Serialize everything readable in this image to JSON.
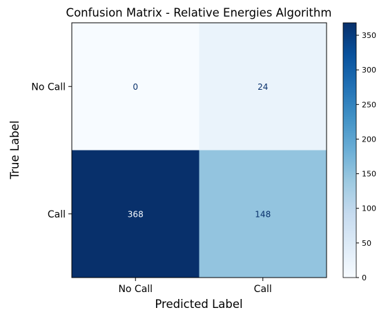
{
  "chart_data": {
    "type": "heatmap",
    "title": "Confusion Matrix - Relative Energies Algorithm",
    "xlabel": "Predicted Label",
    "ylabel": "True Label",
    "x_categories": [
      "No Call",
      "Call"
    ],
    "y_categories": [
      "No Call",
      "Call"
    ],
    "values": [
      [
        0,
        24
      ],
      [
        368,
        148
      ]
    ],
    "colormap": "Blues",
    "colorbar": {
      "vmin": 0,
      "vmax": 368,
      "ticks": [
        0,
        50,
        100,
        150,
        200,
        250,
        300,
        350
      ]
    },
    "colors": {
      "low": "#f7fbff",
      "high": "#08306b",
      "text_light": "#f7fbff",
      "text_dark": "#08306b"
    },
    "grid": false
  }
}
